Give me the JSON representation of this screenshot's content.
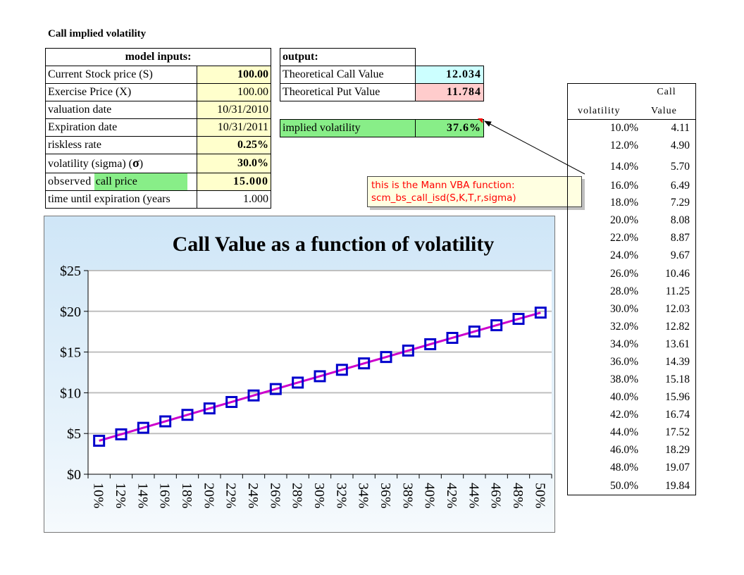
{
  "sheet": {
    "title": "Call implied volatility"
  },
  "inputs": {
    "header": "model inputs:",
    "rows": [
      {
        "label": "Current Stock price (S)",
        "value": "100.00"
      },
      {
        "label": "Exercise Price (X)",
        "value": "100.00"
      },
      {
        "label": "valuation date",
        "value": "10/31/2010"
      },
      {
        "label": "Expiration date",
        "value": "10/31/2011"
      },
      {
        "label": "riskless rate",
        "value": "0.25%"
      },
      {
        "label": "volatility (sigma) (",
        "symbol": "σ",
        "label_end": ")",
        "value": "30.0%"
      },
      {
        "label": "observed",
        "label_highlight": "call price",
        "value": "15.000"
      },
      {
        "label": "time until expiration (years",
        "value": "1.000"
      }
    ]
  },
  "outputs": {
    "header": "output:",
    "rows": [
      {
        "label": "Theoretical Call Value",
        "value": "12.034"
      },
      {
        "label": "Theoretical Put Value",
        "value": "11.784"
      }
    ],
    "implied": {
      "label": "implied volatility",
      "value": "37.6%"
    }
  },
  "comment": {
    "line1": "this is the Mann VBA function:",
    "line2": "scm_bs_call_isd(S,K,T,r,sigma)"
  },
  "value_table": {
    "header_top": "Call",
    "header_col1": "volatility",
    "header_col2": "Value",
    "rows": [
      [
        "10.0%",
        "4.11"
      ],
      [
        "12.0%",
        "4.90"
      ],
      [
        "14.0%",
        "5.70"
      ],
      [
        "16.0%",
        "6.49"
      ],
      [
        "18.0%",
        "7.29"
      ],
      [
        "20.0%",
        "8.08"
      ],
      [
        "22.0%",
        "8.87"
      ],
      [
        "24.0%",
        "9.67"
      ],
      [
        "26.0%",
        "10.46"
      ],
      [
        "28.0%",
        "11.25"
      ],
      [
        "30.0%",
        "12.03"
      ],
      [
        "32.0%",
        "12.82"
      ],
      [
        "34.0%",
        "13.61"
      ],
      [
        "36.0%",
        "14.39"
      ],
      [
        "38.0%",
        "15.18"
      ],
      [
        "40.0%",
        "15.96"
      ],
      [
        "42.0%",
        "16.74"
      ],
      [
        "44.0%",
        "17.52"
      ],
      [
        "46.0%",
        "18.29"
      ],
      [
        "48.0%",
        "19.07"
      ],
      [
        "50.0%",
        "19.84"
      ]
    ]
  },
  "chart_data": {
    "type": "line",
    "title": "Call Value as a function of volatility",
    "xlabel": "",
    "ylabel": "",
    "categories": [
      "10%",
      "12%",
      "14%",
      "16%",
      "18%",
      "20%",
      "22%",
      "24%",
      "26%",
      "28%",
      "30%",
      "32%",
      "34%",
      "36%",
      "38%",
      "40%",
      "42%",
      "44%",
      "46%",
      "48%",
      "50%"
    ],
    "series": [
      {
        "values": [
          4.11,
          4.9,
          5.7,
          6.49,
          7.29,
          8.08,
          8.87,
          9.67,
          10.46,
          11.25,
          12.03,
          12.82,
          13.61,
          14.39,
          15.18,
          15.96,
          16.74,
          17.52,
          18.29,
          19.07,
          19.84
        ]
      }
    ],
    "ylim": [
      0,
      25
    ],
    "yticks": [
      "$0",
      "$5",
      "$10",
      "$15",
      "$20",
      "$25"
    ],
    "grid": true,
    "legend": "none",
    "colors": {
      "line": "#cc00cc",
      "marker": "#0000cc",
      "grid": "#bfbfbf"
    }
  }
}
